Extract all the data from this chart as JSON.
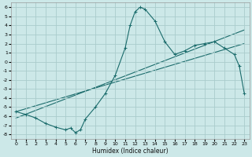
{
  "xlabel": "Humidex (Indice chaleur)",
  "xlim": [
    -0.5,
    23.5
  ],
  "ylim": [
    -8.5,
    6.5
  ],
  "xticks": [
    0,
    1,
    2,
    3,
    4,
    5,
    6,
    7,
    8,
    9,
    10,
    11,
    12,
    13,
    14,
    15,
    16,
    17,
    18,
    19,
    20,
    21,
    22,
    23
  ],
  "yticks": [
    -8,
    -7,
    -6,
    -5,
    -4,
    -3,
    -2,
    -1,
    0,
    1,
    2,
    3,
    4,
    5,
    6
  ],
  "bg_color": "#cce8e8",
  "grid_color": "#aacccc",
  "line_color": "#1a6b6b",
  "curve_x": [
    0,
    1,
    2,
    3,
    4,
    5,
    5.5,
    6,
    6.5,
    7,
    8,
    9,
    10,
    11,
    11.5,
    12,
    12.5,
    13,
    14,
    15,
    16,
    17,
    18,
    19,
    20,
    21,
    22,
    22.5,
    23
  ],
  "curve_y": [
    -5.5,
    -5.8,
    -6.2,
    -6.8,
    -7.2,
    -7.5,
    -7.3,
    -7.8,
    -7.5,
    -6.3,
    -5.0,
    -3.5,
    -1.5,
    1.5,
    4.0,
    5.5,
    6.0,
    5.8,
    4.5,
    2.2,
    0.8,
    1.2,
    1.8,
    2.0,
    2.2,
    1.5,
    0.8,
    -0.5,
    -3.5
  ],
  "reg_line1_x": [
    0,
    23
  ],
  "reg_line1_y": [
    -6.2,
    3.5
  ],
  "reg_line2_x": [
    0,
    23
  ],
  "reg_line2_y": [
    -5.5,
    2.0
  ],
  "marker": "+"
}
